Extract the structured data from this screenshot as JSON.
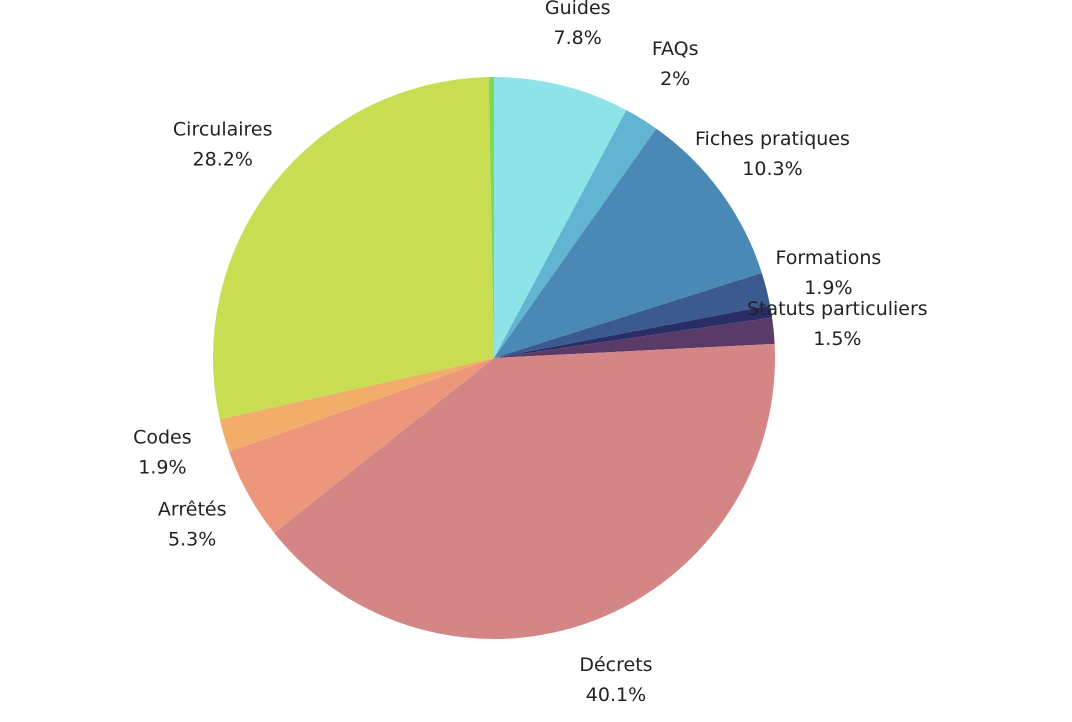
{
  "chart_data": {
    "type": "pie",
    "categories": [
      "Guides",
      "FAQs",
      "Fiches pratiques",
      "Formations",
      null,
      "Statuts particuliers",
      "Décrets",
      "Arrêtés",
      "Codes",
      "Circulaires",
      null
    ],
    "values": [
      7.8,
      2,
      10.3,
      1.9,
      0.7,
      1.5,
      40.1,
      5.3,
      1.9,
      28.2,
      0.3
    ],
    "value_labels": [
      "7.8%",
      "2%",
      "10.3%",
      "1.9%",
      null,
      "1.5%",
      "40.1%",
      "5.3%",
      "1.9%",
      "28.2%",
      null
    ],
    "colors": [
      "#8ee3e8",
      "#62b5d2",
      "#4a89b5",
      "#3b5b90",
      "#2a2e66",
      "#5a3a66",
      "#d48686",
      "#ec977c",
      "#f2ad6b",
      "#c8dd52",
      "#7ed957"
    ]
  }
}
